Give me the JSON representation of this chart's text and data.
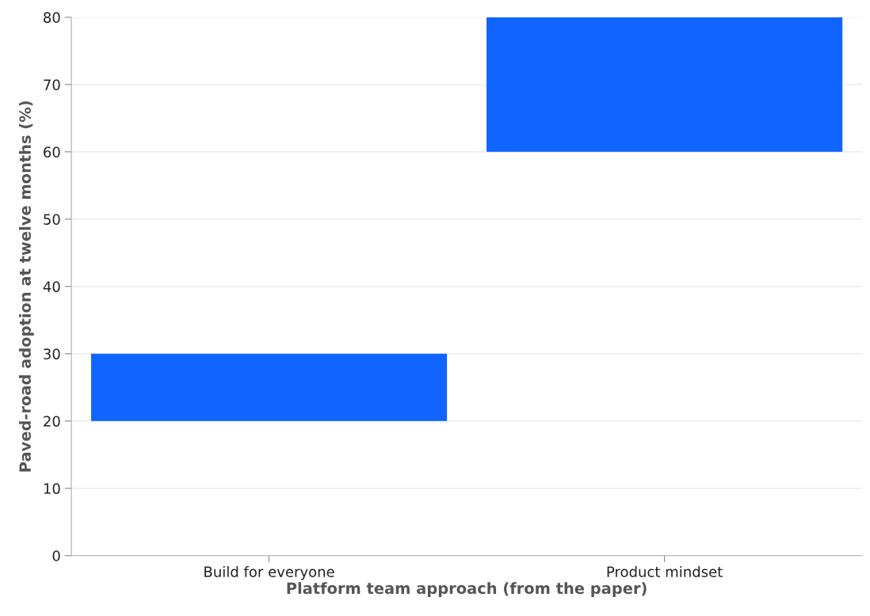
{
  "chart_data": {
    "type": "bar",
    "xlabel": "Platform team approach (from the paper)",
    "ylabel": "Paved-road adoption at twelve months (%)",
    "categories": [
      "Build for everyone",
      "Product mindset"
    ],
    "base": [
      20,
      60
    ],
    "values": [
      10,
      20
    ],
    "color": "#1064ff",
    "ylim": [
      0,
      80
    ],
    "yticks": [
      0,
      10,
      20,
      30,
      40,
      50,
      60,
      70,
      80
    ],
    "grid": "y"
  }
}
